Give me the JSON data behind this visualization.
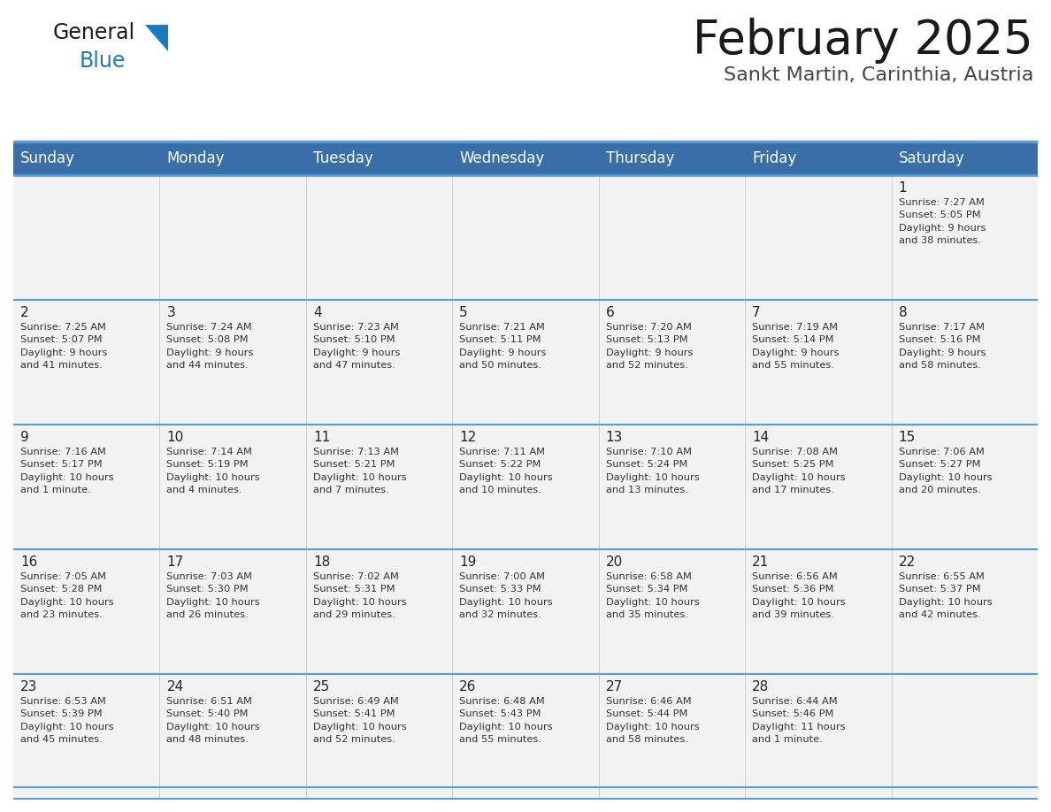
{
  "title": "February 2025",
  "subtitle": "Sankt Martin, Carinthia, Austria",
  "days_of_week": [
    "Sunday",
    "Monday",
    "Tuesday",
    "Wednesday",
    "Thursday",
    "Friday",
    "Saturday"
  ],
  "header_bg": "#3a6ea8",
  "header_text_color": "#ffffff",
  "cell_bg": "#f2f2f2",
  "border_color": "#3a7abf",
  "row_border_color": "#5b9bd5",
  "title_color": "#1a1a1a",
  "subtitle_color": "#444444",
  "day_num_color": "#222222",
  "cell_text_color": "#333333",
  "logo_general_color": "#1a1a1a",
  "logo_blue_color": "#1a7abf",
  "weeks": [
    [
      {
        "day": null,
        "info": null
      },
      {
        "day": null,
        "info": null
      },
      {
        "day": null,
        "info": null
      },
      {
        "day": null,
        "info": null
      },
      {
        "day": null,
        "info": null
      },
      {
        "day": null,
        "info": null
      },
      {
        "day": 1,
        "info": "Sunrise: 7:27 AM\nSunset: 5:05 PM\nDaylight: 9 hours\nand 38 minutes."
      }
    ],
    [
      {
        "day": 2,
        "info": "Sunrise: 7:25 AM\nSunset: 5:07 PM\nDaylight: 9 hours\nand 41 minutes."
      },
      {
        "day": 3,
        "info": "Sunrise: 7:24 AM\nSunset: 5:08 PM\nDaylight: 9 hours\nand 44 minutes."
      },
      {
        "day": 4,
        "info": "Sunrise: 7:23 AM\nSunset: 5:10 PM\nDaylight: 9 hours\nand 47 minutes."
      },
      {
        "day": 5,
        "info": "Sunrise: 7:21 AM\nSunset: 5:11 PM\nDaylight: 9 hours\nand 50 minutes."
      },
      {
        "day": 6,
        "info": "Sunrise: 7:20 AM\nSunset: 5:13 PM\nDaylight: 9 hours\nand 52 minutes."
      },
      {
        "day": 7,
        "info": "Sunrise: 7:19 AM\nSunset: 5:14 PM\nDaylight: 9 hours\nand 55 minutes."
      },
      {
        "day": 8,
        "info": "Sunrise: 7:17 AM\nSunset: 5:16 PM\nDaylight: 9 hours\nand 58 minutes."
      }
    ],
    [
      {
        "day": 9,
        "info": "Sunrise: 7:16 AM\nSunset: 5:17 PM\nDaylight: 10 hours\nand 1 minute."
      },
      {
        "day": 10,
        "info": "Sunrise: 7:14 AM\nSunset: 5:19 PM\nDaylight: 10 hours\nand 4 minutes."
      },
      {
        "day": 11,
        "info": "Sunrise: 7:13 AM\nSunset: 5:21 PM\nDaylight: 10 hours\nand 7 minutes."
      },
      {
        "day": 12,
        "info": "Sunrise: 7:11 AM\nSunset: 5:22 PM\nDaylight: 10 hours\nand 10 minutes."
      },
      {
        "day": 13,
        "info": "Sunrise: 7:10 AM\nSunset: 5:24 PM\nDaylight: 10 hours\nand 13 minutes."
      },
      {
        "day": 14,
        "info": "Sunrise: 7:08 AM\nSunset: 5:25 PM\nDaylight: 10 hours\nand 17 minutes."
      },
      {
        "day": 15,
        "info": "Sunrise: 7:06 AM\nSunset: 5:27 PM\nDaylight: 10 hours\nand 20 minutes."
      }
    ],
    [
      {
        "day": 16,
        "info": "Sunrise: 7:05 AM\nSunset: 5:28 PM\nDaylight: 10 hours\nand 23 minutes."
      },
      {
        "day": 17,
        "info": "Sunrise: 7:03 AM\nSunset: 5:30 PM\nDaylight: 10 hours\nand 26 minutes."
      },
      {
        "day": 18,
        "info": "Sunrise: 7:02 AM\nSunset: 5:31 PM\nDaylight: 10 hours\nand 29 minutes."
      },
      {
        "day": 19,
        "info": "Sunrise: 7:00 AM\nSunset: 5:33 PM\nDaylight: 10 hours\nand 32 minutes."
      },
      {
        "day": 20,
        "info": "Sunrise: 6:58 AM\nSunset: 5:34 PM\nDaylight: 10 hours\nand 35 minutes."
      },
      {
        "day": 21,
        "info": "Sunrise: 6:56 AM\nSunset: 5:36 PM\nDaylight: 10 hours\nand 39 minutes."
      },
      {
        "day": 22,
        "info": "Sunrise: 6:55 AM\nSunset: 5:37 PM\nDaylight: 10 hours\nand 42 minutes."
      }
    ],
    [
      {
        "day": 23,
        "info": "Sunrise: 6:53 AM\nSunset: 5:39 PM\nDaylight: 10 hours\nand 45 minutes."
      },
      {
        "day": 24,
        "info": "Sunrise: 6:51 AM\nSunset: 5:40 PM\nDaylight: 10 hours\nand 48 minutes."
      },
      {
        "day": 25,
        "info": "Sunrise: 6:49 AM\nSunset: 5:41 PM\nDaylight: 10 hours\nand 52 minutes."
      },
      {
        "day": 26,
        "info": "Sunrise: 6:48 AM\nSunset: 5:43 PM\nDaylight: 10 hours\nand 55 minutes."
      },
      {
        "day": 27,
        "info": "Sunrise: 6:46 AM\nSunset: 5:44 PM\nDaylight: 10 hours\nand 58 minutes."
      },
      {
        "day": 28,
        "info": "Sunrise: 6:44 AM\nSunset: 5:46 PM\nDaylight: 11 hours\nand 1 minute."
      },
      {
        "day": null,
        "info": null
      }
    ]
  ]
}
